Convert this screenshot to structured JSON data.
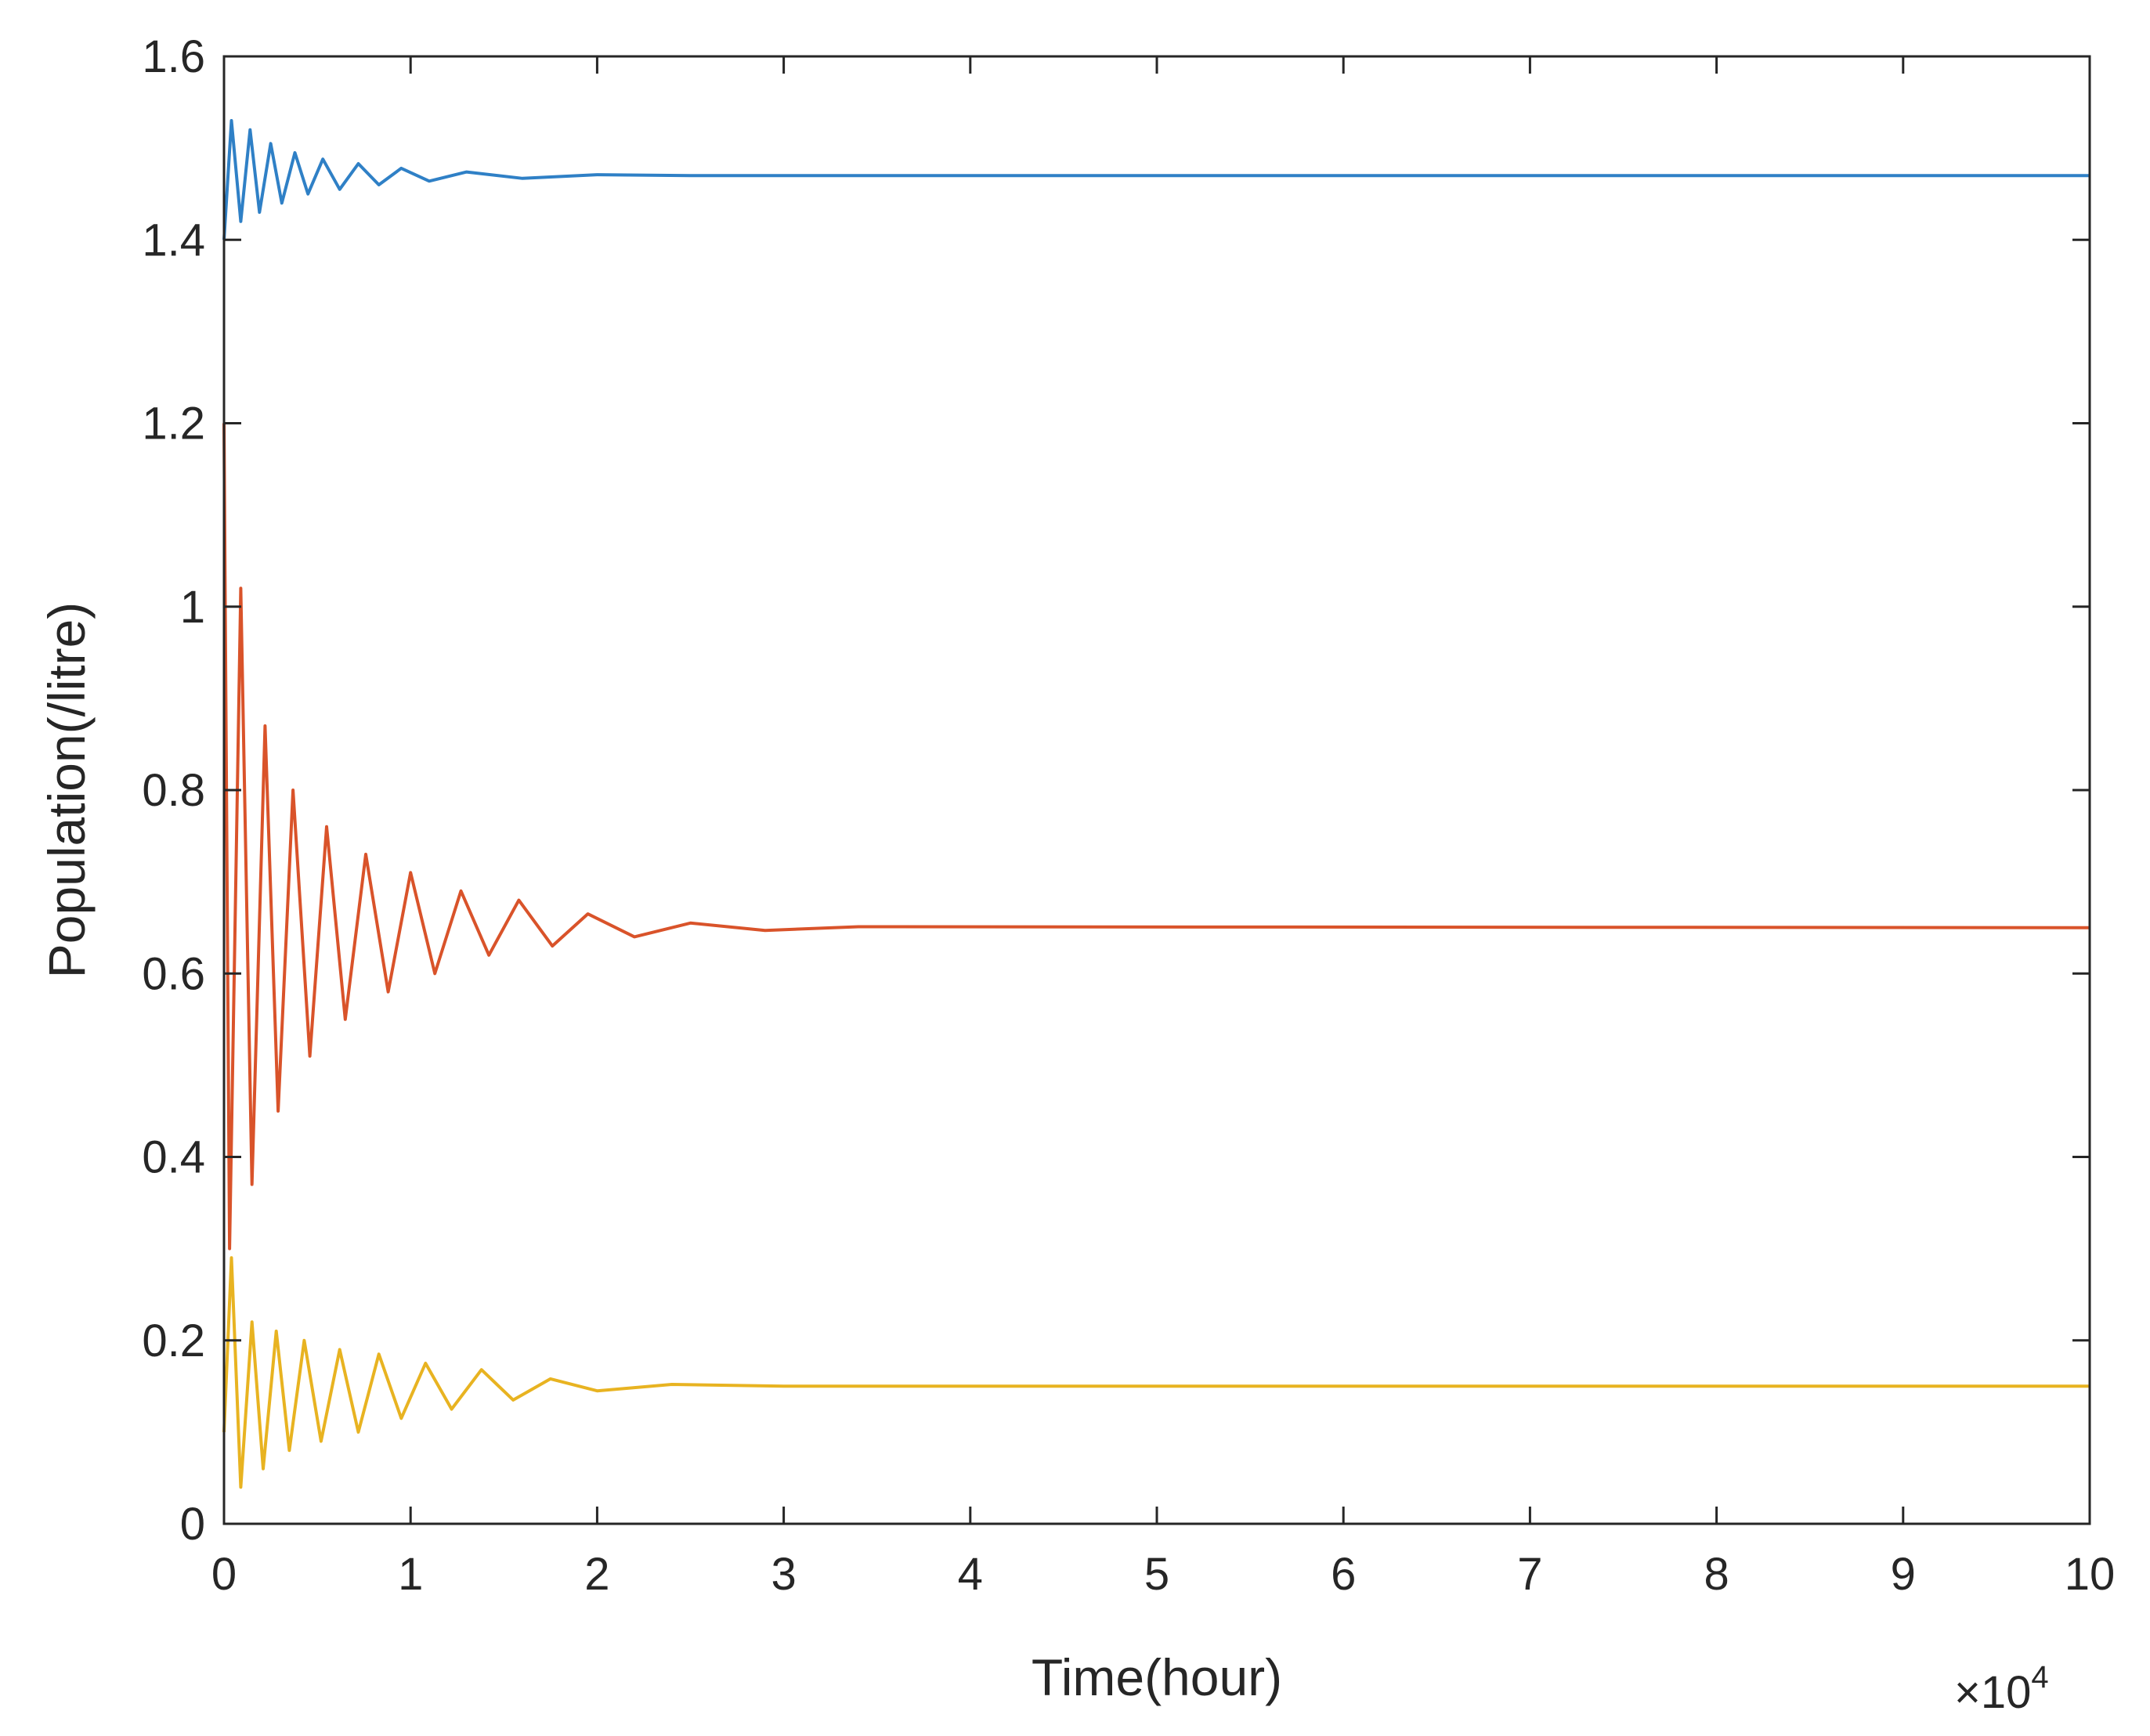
{
  "chart_data": {
    "type": "line",
    "title": "",
    "xlabel": "Time(hour)",
    "ylabel": "Population(/litre)",
    "x_multiplier": {
      "base": "×10",
      "exponent": "4"
    },
    "xlim": [
      0,
      10
    ],
    "ylim": [
      0,
      1.6
    ],
    "x_ticks": [
      "0",
      "1",
      "2",
      "3",
      "4",
      "5",
      "6",
      "7",
      "8",
      "9",
      "10"
    ],
    "y_ticks": [
      "0",
      "0.2",
      "0.4",
      "0.6",
      "0.8",
      "1",
      "1.2",
      "1.4",
      "1.6"
    ],
    "grid": false,
    "legend": "none",
    "series": [
      {
        "color": "#2f80c6",
        "equilibrium": 1.47,
        "points": [
          [
            0,
            1.4
          ],
          [
            0.04,
            1.53
          ],
          [
            0.09,
            1.42
          ],
          [
            0.14,
            1.52
          ],
          [
            0.19,
            1.43
          ],
          [
            0.25,
            1.505
          ],
          [
            0.31,
            1.44
          ],
          [
            0.38,
            1.495
          ],
          [
            0.45,
            1.45
          ],
          [
            0.53,
            1.488
          ],
          [
            0.62,
            1.455
          ],
          [
            0.72,
            1.483
          ],
          [
            0.83,
            1.46
          ],
          [
            0.95,
            1.478
          ],
          [
            1.1,
            1.464
          ],
          [
            1.3,
            1.474
          ],
          [
            1.6,
            1.467
          ],
          [
            2.0,
            1.471
          ],
          [
            2.5,
            1.47
          ],
          [
            10,
            1.47
          ]
        ]
      },
      {
        "color": "#d9532a",
        "equilibrium": 0.65,
        "points": [
          [
            0,
            1.2
          ],
          [
            0.03,
            0.3
          ],
          [
            0.09,
            1.02
          ],
          [
            0.15,
            0.37
          ],
          [
            0.22,
            0.87
          ],
          [
            0.29,
            0.45
          ],
          [
            0.37,
            0.8
          ],
          [
            0.46,
            0.51
          ],
          [
            0.55,
            0.76
          ],
          [
            0.65,
            0.55
          ],
          [
            0.76,
            0.73
          ],
          [
            0.88,
            0.58
          ],
          [
            1.0,
            0.71
          ],
          [
            1.13,
            0.6
          ],
          [
            1.27,
            0.69
          ],
          [
            1.42,
            0.62
          ],
          [
            1.58,
            0.68
          ],
          [
            1.76,
            0.63
          ],
          [
            1.95,
            0.665
          ],
          [
            2.2,
            0.64
          ],
          [
            2.5,
            0.655
          ],
          [
            2.9,
            0.647
          ],
          [
            3.4,
            0.651
          ],
          [
            10,
            0.65
          ]
        ]
      },
      {
        "color": "#e8b321",
        "equilibrium": 0.15,
        "points": [
          [
            0,
            0.1
          ],
          [
            0.04,
            0.29
          ],
          [
            0.09,
            0.04
          ],
          [
            0.15,
            0.22
          ],
          [
            0.21,
            0.06
          ],
          [
            0.28,
            0.21
          ],
          [
            0.35,
            0.08
          ],
          [
            0.43,
            0.2
          ],
          [
            0.52,
            0.09
          ],
          [
            0.62,
            0.19
          ],
          [
            0.72,
            0.1
          ],
          [
            0.83,
            0.185
          ],
          [
            0.95,
            0.115
          ],
          [
            1.08,
            0.175
          ],
          [
            1.22,
            0.125
          ],
          [
            1.38,
            0.168
          ],
          [
            1.55,
            0.135
          ],
          [
            1.75,
            0.158
          ],
          [
            2.0,
            0.145
          ],
          [
            2.4,
            0.152
          ],
          [
            3.0,
            0.15
          ],
          [
            10,
            0.15
          ]
        ]
      }
    ]
  }
}
